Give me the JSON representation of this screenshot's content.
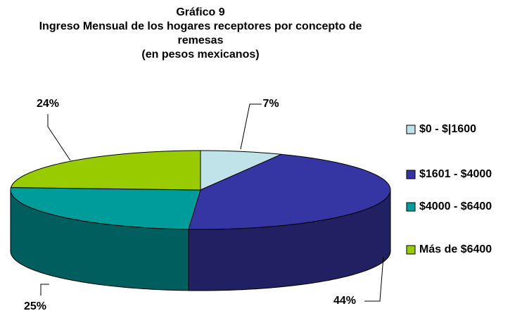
{
  "chart_data": {
    "type": "pie",
    "title": "Gráfico 9",
    "subtitle": "Ingreso Mensual de los hogares receptores por concepto de remesas",
    "note": "(en pesos mexicanos)",
    "categories": [
      "$0 - $|1600",
      "$1601 - $4000",
      "$4000 - $6400",
      "Más de $6400"
    ],
    "values": [
      7,
      44,
      25,
      24
    ],
    "value_labels": [
      "7%",
      "44%",
      "25%",
      "24%"
    ],
    "colors": [
      "#bfe3e8",
      "#3535a3",
      "#009c9c",
      "#99cc00"
    ],
    "legend": "right"
  }
}
